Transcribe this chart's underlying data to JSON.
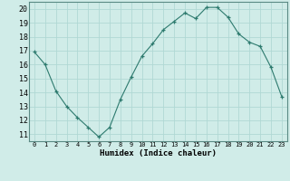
{
  "x": [
    0,
    1,
    2,
    3,
    4,
    5,
    6,
    7,
    8,
    9,
    10,
    11,
    12,
    13,
    14,
    15,
    16,
    17,
    18,
    19,
    20,
    21,
    22,
    23
  ],
  "y": [
    16.9,
    16.0,
    14.1,
    13.0,
    12.2,
    11.5,
    10.8,
    11.5,
    13.5,
    15.1,
    16.6,
    17.5,
    18.5,
    19.1,
    19.7,
    19.3,
    20.1,
    20.1,
    19.4,
    18.2,
    17.6,
    17.3,
    15.8,
    13.7
  ],
  "xlim": [
    -0.5,
    23.5
  ],
  "ylim": [
    10.5,
    20.5
  ],
  "yticks": [
    11,
    12,
    13,
    14,
    15,
    16,
    17,
    18,
    19,
    20
  ],
  "xticks": [
    0,
    1,
    2,
    3,
    4,
    5,
    6,
    7,
    8,
    9,
    10,
    11,
    12,
    13,
    14,
    15,
    16,
    17,
    18,
    19,
    20,
    21,
    22,
    23
  ],
  "xlabel": "Humidex (Indice chaleur)",
  "line_color": "#2d7a6e",
  "marker": "+",
  "bg_color": "#d0ece8",
  "grid_color": "#b0d8d4",
  "spine_color": "#5a8a84"
}
